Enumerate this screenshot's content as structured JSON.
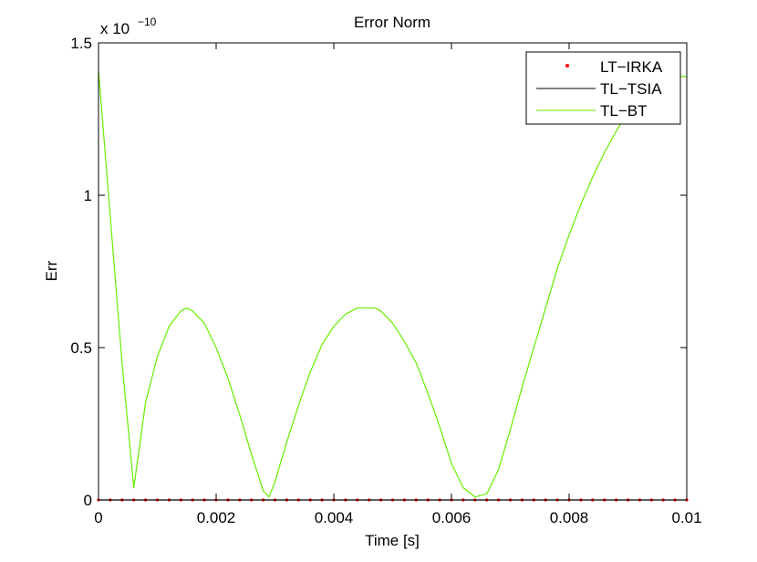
{
  "chart_data": {
    "type": "line",
    "title": "Error Norm",
    "xlabel": "Time [s]",
    "ylabel": "Err",
    "y_exponent_base": "x 10",
    "y_exponent_power": "−10",
    "xlim": [
      0,
      0.01
    ],
    "ylim": [
      0,
      1.5
    ],
    "x_ticks": [
      0,
      0.002,
      0.004,
      0.006,
      0.008,
      0.01
    ],
    "x_tick_labels": [
      "0",
      "0.002",
      "0.004",
      "0.006",
      "0.008",
      "0.01"
    ],
    "y_ticks": [
      0,
      0.5,
      1,
      1.5
    ],
    "y_tick_labels": [
      "0",
      "0.5",
      "1",
      "1.5"
    ],
    "grid": false,
    "legend_position": "top-right",
    "series": [
      {
        "name": "LT−IRKA",
        "style": "dots",
        "color": "#ff0000",
        "x": [
          0,
          0.0002,
          0.0004,
          0.0006,
          0.0008,
          0.001,
          0.0012,
          0.0014,
          0.0016,
          0.0018,
          0.002,
          0.0022,
          0.0024,
          0.0026,
          0.0028,
          0.003,
          0.0032,
          0.0034,
          0.0036,
          0.0038,
          0.004,
          0.0042,
          0.0044,
          0.0046,
          0.0048,
          0.005,
          0.0052,
          0.0054,
          0.0056,
          0.0058,
          0.006,
          0.0062,
          0.0064,
          0.0066,
          0.0068,
          0.007,
          0.0072,
          0.0074,
          0.0076,
          0.0078,
          0.008,
          0.0082,
          0.0084,
          0.0086,
          0.0088,
          0.009,
          0.0092,
          0.0094,
          0.0096,
          0.0098,
          0.01
        ],
        "y": [
          0,
          0,
          0,
          0,
          0,
          0,
          0,
          0,
          0,
          0,
          0,
          0,
          0,
          0,
          0,
          0,
          0,
          0,
          0,
          0,
          0,
          0,
          0,
          0,
          0,
          0,
          0,
          0,
          0,
          0,
          0,
          0,
          0,
          0,
          0,
          0,
          0,
          0,
          0,
          0,
          0,
          0,
          0,
          0,
          0,
          0,
          0,
          0,
          0,
          0,
          0
        ]
      },
      {
        "name": "TL−TSIA",
        "style": "line",
        "color": "#000000",
        "x": [
          0,
          0.01
        ],
        "y": [
          0,
          0
        ]
      },
      {
        "name": "TL−BT",
        "style": "line",
        "color": "#66ee00",
        "x": [
          0,
          0.0002,
          0.0004,
          0.0006,
          0.0008,
          0.001,
          0.0012,
          0.0014,
          0.0015,
          0.0016,
          0.0018,
          0.002,
          0.0022,
          0.0024,
          0.0026,
          0.0028,
          0.0029,
          0.003,
          0.0032,
          0.0034,
          0.0036,
          0.0038,
          0.004,
          0.0042,
          0.0044,
          0.0046,
          0.0047,
          0.0048,
          0.005,
          0.0052,
          0.0054,
          0.0056,
          0.0058,
          0.006,
          0.0062,
          0.0064,
          0.0066,
          0.0068,
          0.007,
          0.0072,
          0.0074,
          0.0076,
          0.0078,
          0.008,
          0.0082,
          0.0084,
          0.0086,
          0.0088,
          0.009,
          0.0092,
          0.0094,
          0.0096,
          0.0098,
          0.01
        ],
        "y": [
          1.41,
          0.93,
          0.45,
          0.04,
          0.32,
          0.47,
          0.57,
          0.62,
          0.63,
          0.62,
          0.58,
          0.5,
          0.4,
          0.28,
          0.15,
          0.03,
          0.01,
          0.06,
          0.19,
          0.31,
          0.42,
          0.51,
          0.57,
          0.61,
          0.63,
          0.63,
          0.63,
          0.62,
          0.58,
          0.52,
          0.45,
          0.35,
          0.24,
          0.12,
          0.04,
          0.01,
          0.02,
          0.1,
          0.23,
          0.37,
          0.5,
          0.63,
          0.76,
          0.87,
          0.97,
          1.06,
          1.14,
          1.21,
          1.27,
          1.32,
          1.35,
          1.38,
          1.39,
          1.39
        ]
      }
    ]
  }
}
